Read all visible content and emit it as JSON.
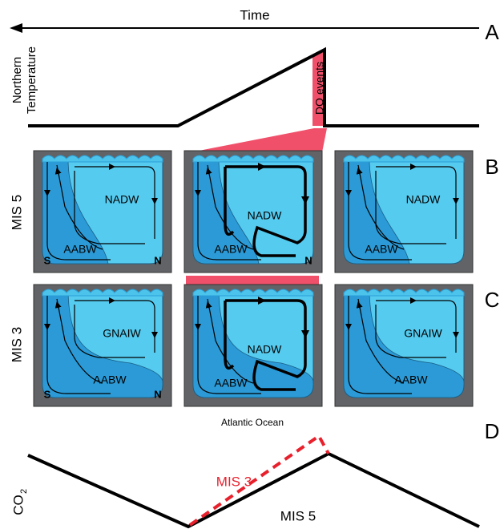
{
  "header": {
    "time": "Time"
  },
  "panel_labels": [
    "A",
    "B",
    "C",
    "D"
  ],
  "temperature": {
    "axis_label": [
      "Northern",
      "Temperature"
    ],
    "event": "DO events"
  },
  "rows": [
    {
      "label": "MIS 5",
      "boxes": [
        {
          "upper": "NADW",
          "lower": "AABW",
          "left_corner": "S",
          "right_corner": "N"
        },
        {
          "upper": "NADW",
          "lower": "AABW",
          "right_corner": "N"
        },
        {
          "upper": "NADW",
          "lower": "AABW"
        }
      ]
    },
    {
      "label": "MIS 3",
      "boxes": [
        {
          "upper": "GNAIW",
          "lower": "AABW",
          "left_corner": "S",
          "right_corner": "N"
        },
        {
          "upper": "NADW",
          "lower": "AABW"
        },
        {
          "upper": "GNAIW",
          "lower": "AABW"
        }
      ]
    }
  ],
  "ocean_label": "Atlantic Ocean",
  "co2": {
    "axis_label": "CO",
    "subscript": "2",
    "series": [
      "MIS 3",
      "MIS 5"
    ]
  }
}
